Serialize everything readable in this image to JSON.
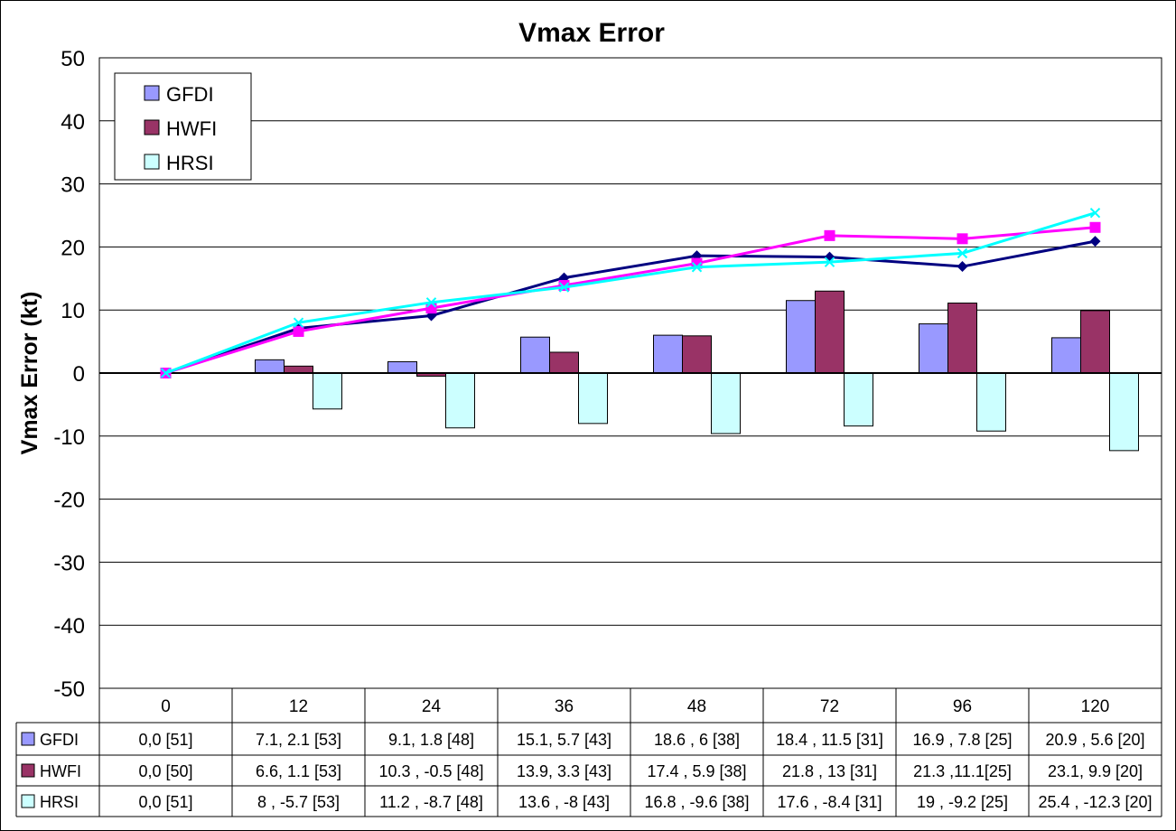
{
  "chart_data": {
    "type": "bar",
    "title": "Vmax Error",
    "ylabel": "Vmax Error (kt)",
    "xlabel": "",
    "ylim": [
      -50,
      50
    ],
    "yticks": [
      50,
      40,
      30,
      20,
      10,
      0,
      -10,
      -20,
      -30,
      -40,
      -50
    ],
    "grid": true,
    "legend_placement": "top-left",
    "categories": [
      "0",
      "12",
      "24",
      "36",
      "48",
      "72",
      "96",
      "120"
    ],
    "series": [
      {
        "name": "GFDI",
        "kind": "bar",
        "color": "#9999FF",
        "values": [
          0,
          2.1,
          1.8,
          5.7,
          6,
          11.5,
          7.8,
          5.6
        ]
      },
      {
        "name": "HWFI",
        "kind": "bar",
        "color": "#993366",
        "values": [
          0,
          1.1,
          -0.5,
          3.3,
          5.9,
          13,
          11.1,
          9.9
        ]
      },
      {
        "name": "HRSI",
        "kind": "bar",
        "color": "#CCFFFF",
        "values": [
          0,
          -5.7,
          -8.7,
          -8,
          -9.6,
          -8.4,
          -9.2,
          -12.3
        ]
      }
    ],
    "lines": [
      {
        "color": "#000080",
        "marker": "diamond",
        "values": [
          0,
          7.1,
          9.1,
          15.1,
          18.6,
          18.4,
          16.9,
          20.9
        ]
      },
      {
        "color": "#FF00FF",
        "marker": "square",
        "values": [
          0,
          6.6,
          10.3,
          13.9,
          17.4,
          21.8,
          21.3,
          23.1
        ]
      },
      {
        "color": "#00FFFF",
        "marker": "x",
        "values": [
          0,
          8,
          11.2,
          13.6,
          16.8,
          17.6,
          19,
          25.4
        ]
      }
    ],
    "table": {
      "rows": [
        {
          "name": "GFDI",
          "color": "#9999FF",
          "cells": [
            "0,0  [51]",
            "7.1, 2.1  [53]",
            "9.1, 1.8  [48]",
            "15.1, 5.7 [43]",
            "18.6 , 6 [38]",
            "18.4 , 11.5 [31]",
            "16.9 ,  7.8 [25]",
            "20.9 , 5.6 [20]"
          ]
        },
        {
          "name": "HWFI",
          "color": "#993366",
          "cells": [
            "0,0  [50]",
            "6.6, 1.1  [53]",
            "10.3 , -0.5 [48]",
            "13.9, 3.3 [43]",
            "17.4 , 5.9 [38]",
            "21.8 , 13 [31]",
            "21.3 ,11.1[25]",
            "23.1, 9.9 [20]"
          ]
        },
        {
          "name": "HRSI",
          "color": "#CCFFFF",
          "cells": [
            "0,0  [51]",
            "8 , -5.7  [53]",
            "11.2 ,  -8.7 [48]",
            "13.6 , -8  [43]",
            "16.8 , -9.6 [38]",
            "17.6 , -8.4 [31]",
            "19  , -9.2  [25]",
            "25.4 , -12.3 [20]"
          ]
        }
      ]
    }
  }
}
